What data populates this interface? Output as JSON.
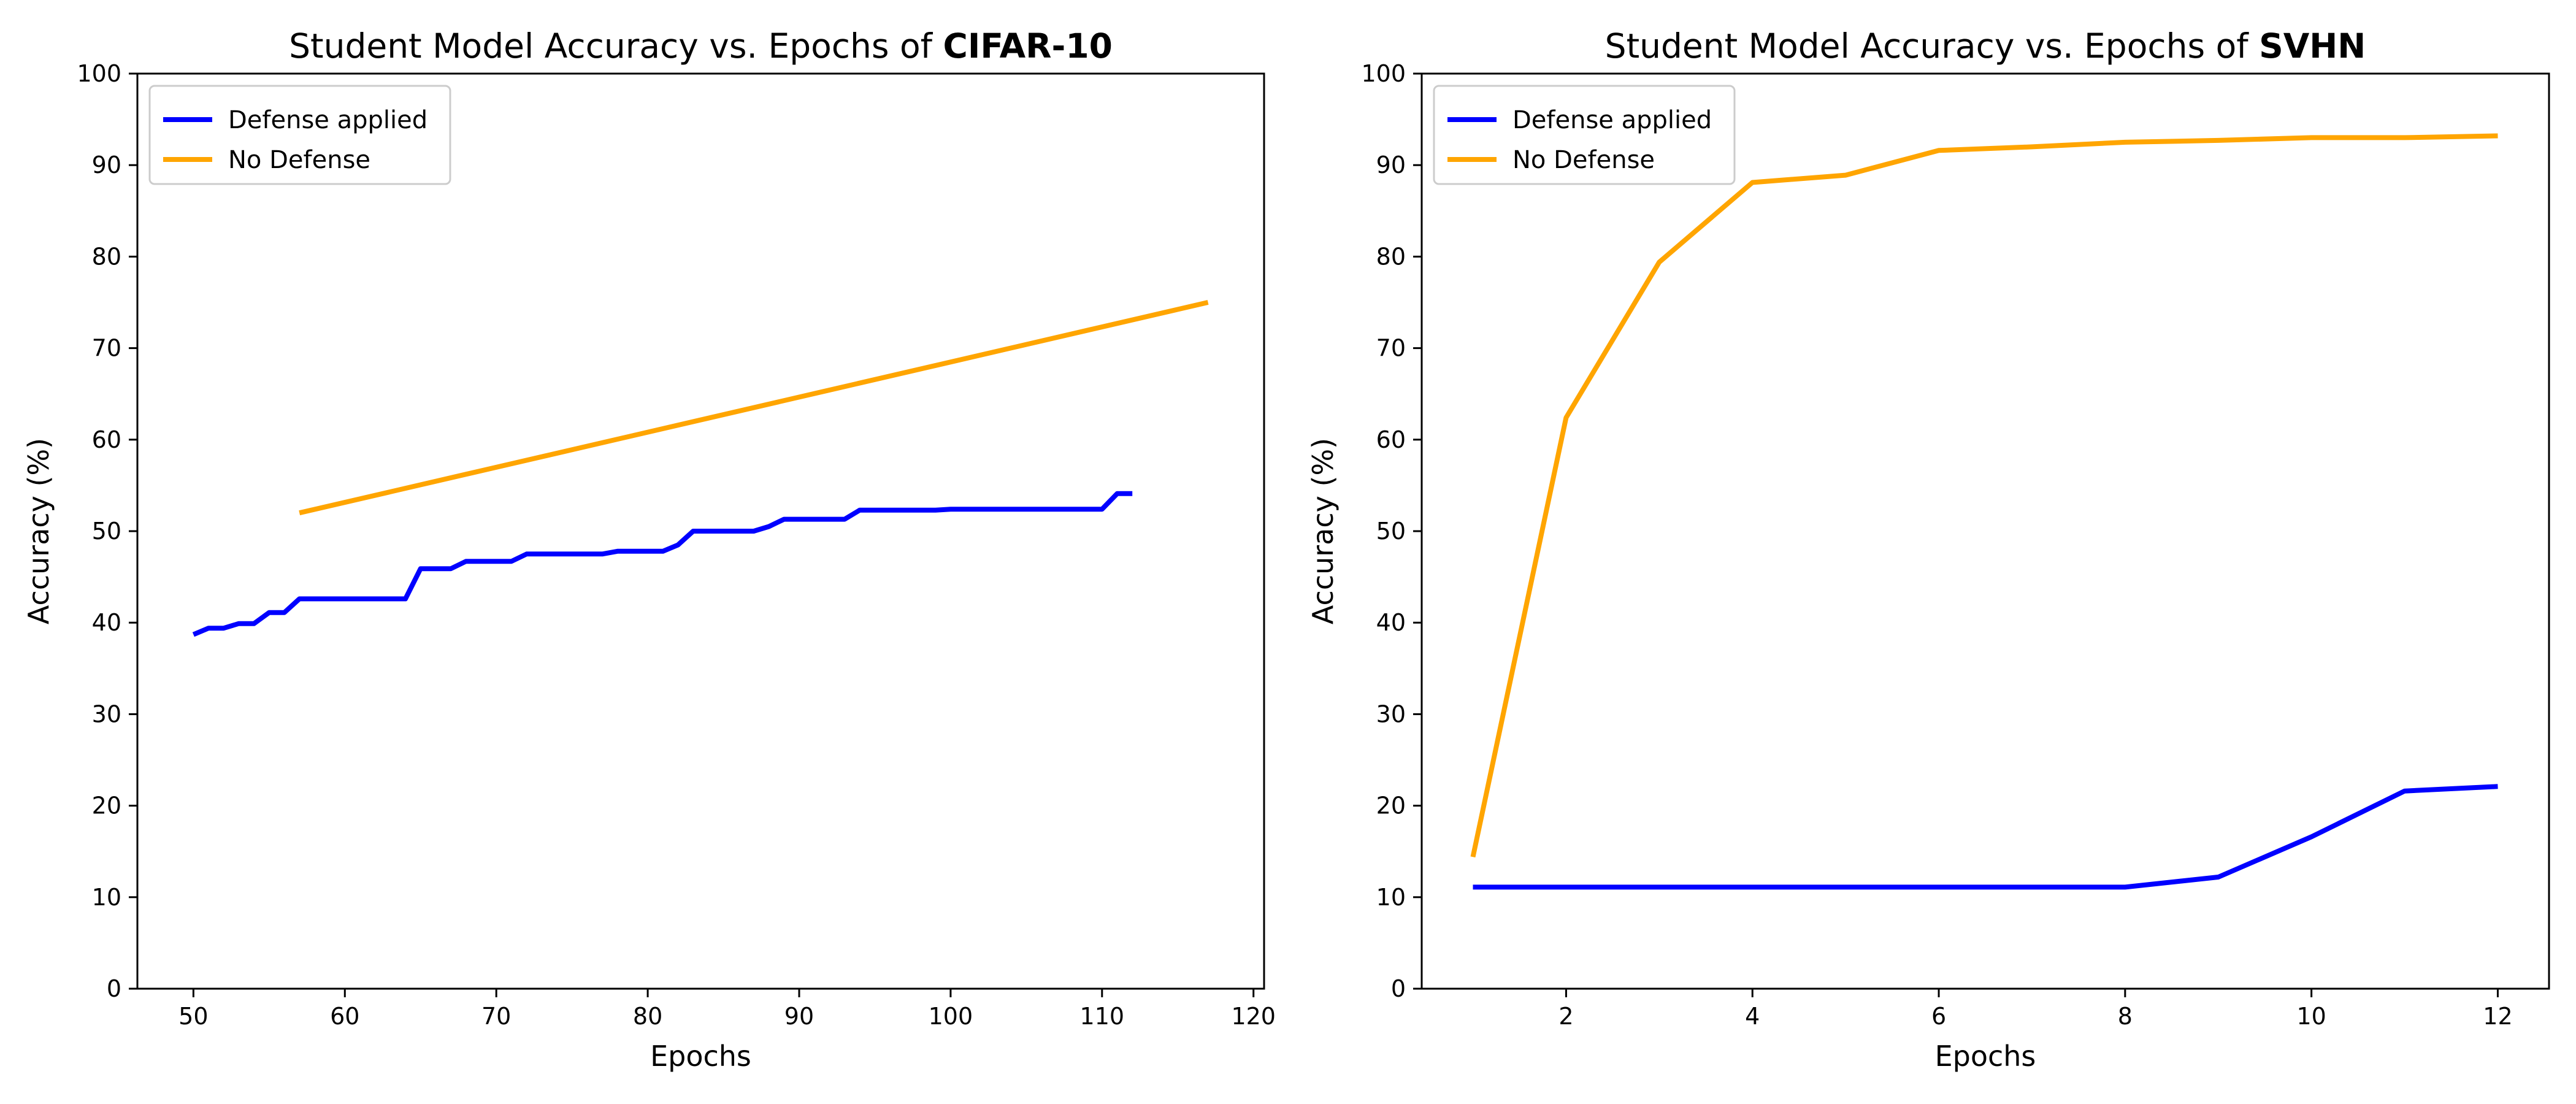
{
  "colors": {
    "defense": "#0000ff",
    "no_defense": "#ffa500"
  },
  "chart_data": [
    {
      "type": "line",
      "title": "Student Model Accuracy vs. Epochs of ",
      "title_bold": "CIFAR-10",
      "xlabel": "Epochs",
      "ylabel": "Accuracy (%)",
      "xlim": [
        46.3,
        120.7
      ],
      "ylim": [
        0,
        100
      ],
      "xticks": [
        50,
        60,
        70,
        80,
        90,
        100,
        110,
        120
      ],
      "yticks": [
        0,
        10,
        20,
        30,
        40,
        50,
        60,
        70,
        80,
        90,
        100
      ],
      "legend": "top-left",
      "grid": false,
      "series": [
        {
          "name": "Defense applied",
          "color": "#0000ff",
          "x": [
            50,
            51,
            52,
            53,
            54,
            55,
            56,
            57,
            58,
            59,
            60,
            61,
            62,
            63,
            64,
            65,
            66,
            67,
            68,
            69,
            70,
            71,
            72,
            73,
            74,
            75,
            76,
            77,
            78,
            79,
            80,
            81,
            82,
            83,
            84,
            85,
            86,
            87,
            88,
            89,
            90,
            91,
            92,
            93,
            94,
            95,
            96,
            97,
            98,
            99,
            100,
            101,
            102,
            103,
            104,
            105,
            106,
            107,
            108,
            109,
            110,
            111,
            112
          ],
          "y": [
            38.7,
            39.4,
            39.4,
            39.9,
            39.9,
            41.1,
            41.1,
            42.6,
            42.6,
            42.6,
            42.6,
            42.6,
            42.6,
            42.6,
            42.6,
            45.9,
            45.9,
            45.9,
            46.7,
            46.7,
            46.7,
            46.7,
            47.5,
            47.5,
            47.5,
            47.5,
            47.5,
            47.5,
            47.8,
            47.8,
            47.8,
            47.8,
            48.5,
            50.0,
            50.0,
            50.0,
            50.0,
            50.0,
            50.5,
            51.3,
            51.3,
            51.3,
            51.3,
            51.3,
            52.3,
            52.3,
            52.3,
            52.3,
            52.3,
            52.3,
            52.4,
            52.4,
            52.4,
            52.4,
            52.4,
            52.4,
            52.4,
            52.4,
            52.4,
            52.4,
            52.4,
            54.1,
            54.1
          ]
        },
        {
          "name": "No Defense",
          "color": "#ffa500",
          "x": [
            57,
            117
          ],
          "y": [
            52.0,
            75.0
          ]
        }
      ]
    },
    {
      "type": "line",
      "title": "Student Model Accuracy vs. Epochs of ",
      "title_bold": "SVHN",
      "xlabel": "Epochs",
      "ylabel": "Accuracy (%)",
      "xlim": [
        0.45,
        12.55
      ],
      "ylim": [
        0,
        100
      ],
      "xticks": [
        2,
        4,
        6,
        8,
        10,
        12
      ],
      "yticks": [
        0,
        10,
        20,
        30,
        40,
        50,
        60,
        70,
        80,
        90,
        100
      ],
      "legend": "top-left",
      "grid": false,
      "series": [
        {
          "name": "Defense applied",
          "color": "#0000ff",
          "x": [
            1,
            2,
            3,
            4,
            5,
            6,
            7,
            8,
            9,
            10,
            11,
            12
          ],
          "y": [
            11.1,
            11.1,
            11.1,
            11.1,
            11.1,
            11.1,
            11.1,
            11.1,
            12.2,
            16.6,
            21.6,
            22.1
          ]
        },
        {
          "name": "No Defense",
          "color": "#ffa500",
          "x": [
            1,
            2,
            3,
            4,
            5,
            6,
            7,
            8,
            9,
            10,
            11,
            12
          ],
          "y": [
            14.4,
            62.4,
            79.4,
            88.1,
            88.9,
            91.6,
            92.0,
            92.5,
            92.7,
            93.0,
            93.0,
            93.2
          ]
        }
      ]
    }
  ]
}
